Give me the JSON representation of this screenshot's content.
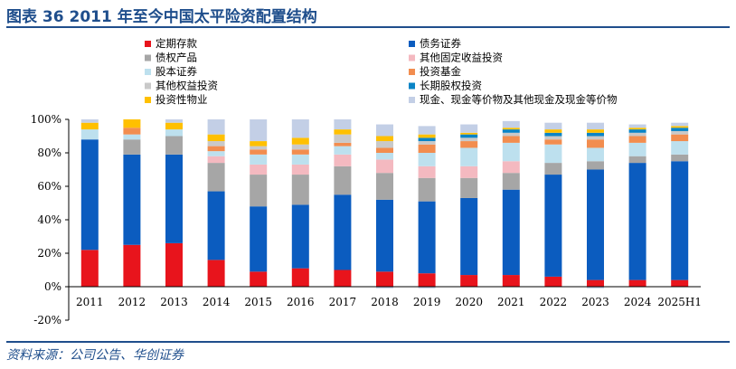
{
  "header": {
    "title": "图表 36   2011 年至今中国太平险资配置结构"
  },
  "footer": {
    "source": "资料来源：公司公告、华创证券"
  },
  "chart_data": {
    "type": "bar",
    "stacked": true,
    "title": "",
    "xlabel": "",
    "ylabel": "",
    "ylim": [
      -20,
      100
    ],
    "yticks": [
      -20,
      0,
      20,
      40,
      60,
      80,
      100
    ],
    "ytick_labels": [
      "-20%",
      "0%",
      "20%",
      "40%",
      "60%",
      "80%",
      "100%"
    ],
    "grid": false,
    "legend_position": "top",
    "categories": [
      "2011",
      "2012",
      "2013",
      "2014",
      "2015",
      "2016",
      "2017",
      "2018",
      "2019",
      "2020",
      "2021",
      "2022",
      "2023",
      "2024",
      "2025H1"
    ],
    "series": [
      {
        "name": "定期存款",
        "color": "#e8141c",
        "values": [
          22,
          25,
          26,
          16,
          9,
          11,
          10,
          9,
          8,
          7,
          7,
          6,
          4,
          4,
          4
        ]
      },
      {
        "name": "债务证券",
        "color": "#0b5cbf",
        "values": [
          66,
          54,
          53,
          41,
          39,
          38,
          45,
          43,
          43,
          46,
          51,
          61,
          66,
          70,
          71
        ]
      },
      {
        "name": "债权产品",
        "color": "#a6a6a6",
        "values": [
          0,
          9,
          11,
          17,
          19,
          18,
          17,
          16,
          14,
          12,
          10,
          7,
          5,
          4,
          4
        ]
      },
      {
        "name": "其他固定收益投资",
        "color": "#f4b9c0",
        "values": [
          0,
          0,
          0,
          4,
          6,
          6,
          7,
          8,
          7,
          7,
          7,
          0,
          0,
          0,
          0
        ]
      },
      {
        "name": "股本证券",
        "color": "#bde0ee",
        "values": [
          6,
          3,
          4,
          3,
          6,
          6,
          5,
          4,
          8,
          11,
          11,
          11,
          8,
          8,
          8
        ]
      },
      {
        "name": "投资基金",
        "color": "#f28d4f",
        "values": [
          0,
          4,
          0,
          3,
          3,
          3,
          2,
          3,
          5,
          4,
          4,
          3,
          5,
          4,
          4
        ]
      },
      {
        "name": "其他权益投资",
        "color": "#c9c9c9",
        "values": [
          0,
          0,
          0,
          3,
          2,
          3,
          5,
          4,
          2,
          2,
          2,
          2,
          2,
          2,
          2
        ]
      },
      {
        "name": "长期股权投资",
        "color": "#0a84c6",
        "values": [
          0,
          0,
          0,
          0,
          0,
          0,
          0,
          0,
          2,
          2,
          2,
          2,
          2,
          2,
          2
        ]
      },
      {
        "name": "投资性物业",
        "color": "#ffc000",
        "values": [
          4,
          5,
          4,
          4,
          3,
          4,
          3,
          3,
          2,
          1,
          1,
          2,
          2,
          1,
          1
        ]
      },
      {
        "name": "现金、现金等价物及其他现金及现金等价物",
        "color": "#c3cfe6",
        "values": [
          2,
          0,
          2,
          9,
          13,
          11,
          6,
          7,
          5,
          5,
          4,
          4,
          4,
          2,
          2
        ]
      }
    ],
    "negative_series": {
      "name": "现金、现金等价物及其他现金及现金等价物",
      "color": "#c3cfe6",
      "values": [
        0,
        0,
        0,
        0,
        0,
        0,
        0,
        -1,
        -1,
        0,
        0,
        0,
        -1,
        0,
        0
      ]
    }
  }
}
